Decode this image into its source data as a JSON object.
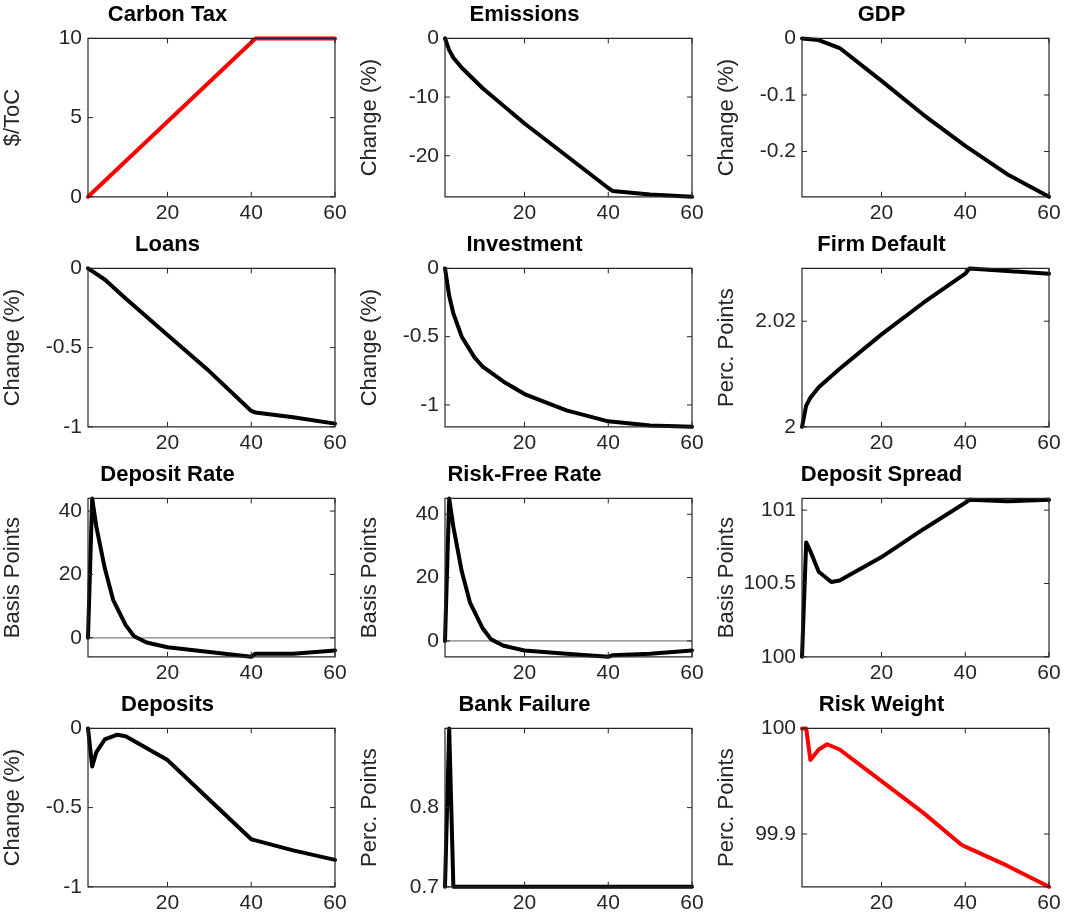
{
  "chart_data": [
    {
      "type": "line",
      "title": "Carbon Tax",
      "ylabel": "$/ToC",
      "x": [
        1,
        41,
        60
      ],
      "xlim": [
        1,
        60
      ],
      "xticks": [
        20,
        40,
        60
      ],
      "ylim": [
        0,
        10
      ],
      "yticks": [
        0,
        5,
        10
      ],
      "grid": false,
      "legend": false,
      "series": [
        {
          "color": "#ff0000",
          "values": [
            0,
            10,
            10
          ]
        }
      ]
    },
    {
      "type": "line",
      "title": "Emissions",
      "ylabel": "Change (%)",
      "x": [
        1,
        2,
        3,
        5,
        10,
        20,
        30,
        40,
        41,
        50,
        60
      ],
      "xlim": [
        1,
        60
      ],
      "xticks": [
        20,
        40,
        60
      ],
      "ylim": [
        -27,
        0
      ],
      "yticks": [
        -20,
        -10,
        0
      ],
      "grid": false,
      "legend": false,
      "series": [
        {
          "color": "#000000",
          "values": [
            0,
            -2,
            -3.3,
            -5,
            -8.5,
            -14.5,
            -20,
            -25.5,
            -26,
            -26.6,
            -27
          ]
        }
      ]
    },
    {
      "type": "line",
      "title": "GDP",
      "ylabel": "Change (%)",
      "x": [
        1,
        5,
        10,
        20,
        30,
        40,
        50,
        60
      ],
      "xlim": [
        1,
        60
      ],
      "xticks": [
        20,
        40,
        60
      ],
      "ylim": [
        -0.28,
        0
      ],
      "yticks": [
        -0.2,
        -0.1,
        0
      ],
      "grid": false,
      "legend": false,
      "series": [
        {
          "color": "#000000",
          "values": [
            0,
            -0.003,
            -0.017,
            -0.075,
            -0.135,
            -0.19,
            -0.24,
            -0.28
          ]
        }
      ]
    },
    {
      "type": "line",
      "title": "Loans",
      "ylabel": "Change (%)",
      "x": [
        1,
        5,
        10,
        20,
        30,
        40,
        41,
        50,
        60
      ],
      "xlim": [
        1,
        60
      ],
      "xticks": [
        20,
        40,
        60
      ],
      "ylim": [
        -1,
        0
      ],
      "yticks": [
        -1,
        -0.5,
        0
      ],
      "grid": false,
      "legend": false,
      "series": [
        {
          "color": "#000000",
          "values": [
            0,
            -0.07,
            -0.19,
            -0.42,
            -0.65,
            -0.9,
            -0.91,
            -0.94,
            -0.98
          ]
        }
      ]
    },
    {
      "type": "line",
      "title": "Investment",
      "ylabel": "Change (%)",
      "x": [
        1,
        2,
        3,
        5,
        8,
        10,
        15,
        20,
        30,
        40,
        50,
        60
      ],
      "xlim": [
        1,
        60
      ],
      "xticks": [
        20,
        40,
        60
      ],
      "ylim": [
        -1.16,
        0
      ],
      "yticks": [
        -1,
        -0.5,
        0
      ],
      "grid": false,
      "legend": false,
      "series": [
        {
          "color": "#000000",
          "values": [
            0,
            -0.2,
            -0.33,
            -0.5,
            -0.65,
            -0.72,
            -0.83,
            -0.92,
            -1.04,
            -1.12,
            -1.15,
            -1.16
          ]
        }
      ]
    },
    {
      "type": "line",
      "title": "Firm Default",
      "ylabel": "Perc. Points",
      "x": [
        1,
        2,
        3,
        5,
        10,
        20,
        30,
        40,
        41,
        50,
        60
      ],
      "xlim": [
        1,
        60
      ],
      "xticks": [
        20,
        40,
        60
      ],
      "ylim": [
        2,
        2.03
      ],
      "yticks": [
        2,
        2.02
      ],
      "grid": false,
      "legend": false,
      "series": [
        {
          "color": "#000000",
          "values": [
            2,
            2.004,
            2.0055,
            2.0075,
            2.011,
            2.0175,
            2.0235,
            2.029,
            2.03,
            2.0295,
            2.029
          ]
        }
      ]
    },
    {
      "type": "line",
      "title": "Deposit Rate",
      "ylabel": "Basis Points",
      "x": [
        1,
        2,
        3,
        5,
        7,
        10,
        12,
        15,
        20,
        30,
        40,
        41,
        50,
        60
      ],
      "xlim": [
        1,
        60
      ],
      "xticks": [
        20,
        40,
        60
      ],
      "ylim": [
        -6,
        44
      ],
      "yticks": [
        0,
        20,
        40
      ],
      "grid": false,
      "legend": false,
      "ref_lines": [
        {
          "axis": "y",
          "value": 0,
          "color": "#808080"
        }
      ],
      "series": [
        {
          "color": "#000000",
          "values": [
            0,
            44,
            35,
            22,
            12,
            4,
            0.5,
            -1.5,
            -3,
            -4.5,
            -6,
            -5,
            -5,
            -4
          ]
        }
      ]
    },
    {
      "type": "line",
      "title": "Risk-Free Rate",
      "ylabel": "Basis Points",
      "x": [
        1,
        2,
        3,
        5,
        7,
        10,
        12,
        15,
        20,
        30,
        40,
        41,
        50,
        60
      ],
      "xlim": [
        1,
        60
      ],
      "xticks": [
        20,
        40,
        60
      ],
      "ylim": [
        -5,
        45
      ],
      "yticks": [
        0,
        20,
        40
      ],
      "grid": false,
      "legend": false,
      "ref_lines": [
        {
          "axis": "y",
          "value": 0,
          "color": "#808080"
        }
      ],
      "series": [
        {
          "color": "#000000",
          "values": [
            0,
            45,
            36,
            22,
            12,
            4,
            0.5,
            -1.5,
            -3,
            -4,
            -5,
            -4.5,
            -4,
            -3
          ]
        }
      ]
    },
    {
      "type": "line",
      "title": "Deposit Spread",
      "ylabel": "Basis Points",
      "x": [
        1,
        2,
        3,
        5,
        8,
        10,
        20,
        30,
        40,
        41,
        50,
        60
      ],
      "xlim": [
        1,
        60
      ],
      "xticks": [
        20,
        40,
        60
      ],
      "ylim": [
        100,
        101.08
      ],
      "yticks": [
        100,
        100.5,
        101
      ],
      "grid": false,
      "legend": false,
      "series": [
        {
          "color": "#000000",
          "values": [
            100,
            100.78,
            100.72,
            100.58,
            100.51,
            100.52,
            100.68,
            100.87,
            101.05,
            101.07,
            101.06,
            101.07
          ]
        }
      ]
    },
    {
      "type": "line",
      "title": "Deposits",
      "ylabel": "Change (%)",
      "x": [
        1,
        2,
        3,
        5,
        8,
        10,
        20,
        30,
        40,
        50,
        60
      ],
      "xlim": [
        1,
        60
      ],
      "xticks": [
        20,
        40,
        60
      ],
      "ylim": [
        -1,
        0
      ],
      "yticks": [
        -1,
        -0.5,
        0
      ],
      "grid": false,
      "legend": false,
      "series": [
        {
          "color": "#000000",
          "values": [
            0,
            -0.24,
            -0.15,
            -0.07,
            -0.04,
            -0.05,
            -0.2,
            -0.45,
            -0.7,
            -0.77,
            -0.83
          ]
        }
      ]
    },
    {
      "type": "line",
      "title": "Bank Failure",
      "ylabel": "Perc. Points",
      "x": [
        1,
        2,
        3,
        60
      ],
      "xlim": [
        1,
        60
      ],
      "xticks": [
        20,
        40,
        60
      ],
      "ylim": [
        0.7,
        0.9
      ],
      "yticks": [
        0.7,
        0.8
      ],
      "grid": false,
      "legend": false,
      "series": [
        {
          "color": "#000000",
          "values": [
            0.7,
            0.9,
            0.7,
            0.7
          ]
        }
      ]
    },
    {
      "type": "line",
      "title": "Risk Weight",
      "ylabel": "Perc. Points",
      "x": [
        1,
        2,
        3,
        5,
        7,
        10,
        20,
        30,
        39,
        40,
        50,
        60
      ],
      "xlim": [
        1,
        60
      ],
      "xticks": [
        20,
        40,
        60
      ],
      "ylim": [
        99.85,
        100
      ],
      "yticks": [
        99.9,
        100
      ],
      "grid": false,
      "legend": false,
      "series": [
        {
          "color": "#ff0000",
          "values": [
            100,
            100,
            99.97,
            99.98,
            99.985,
            99.98,
            99.95,
            99.92,
            99.89,
            99.888,
            99.87,
            99.85
          ]
        }
      ]
    }
  ]
}
